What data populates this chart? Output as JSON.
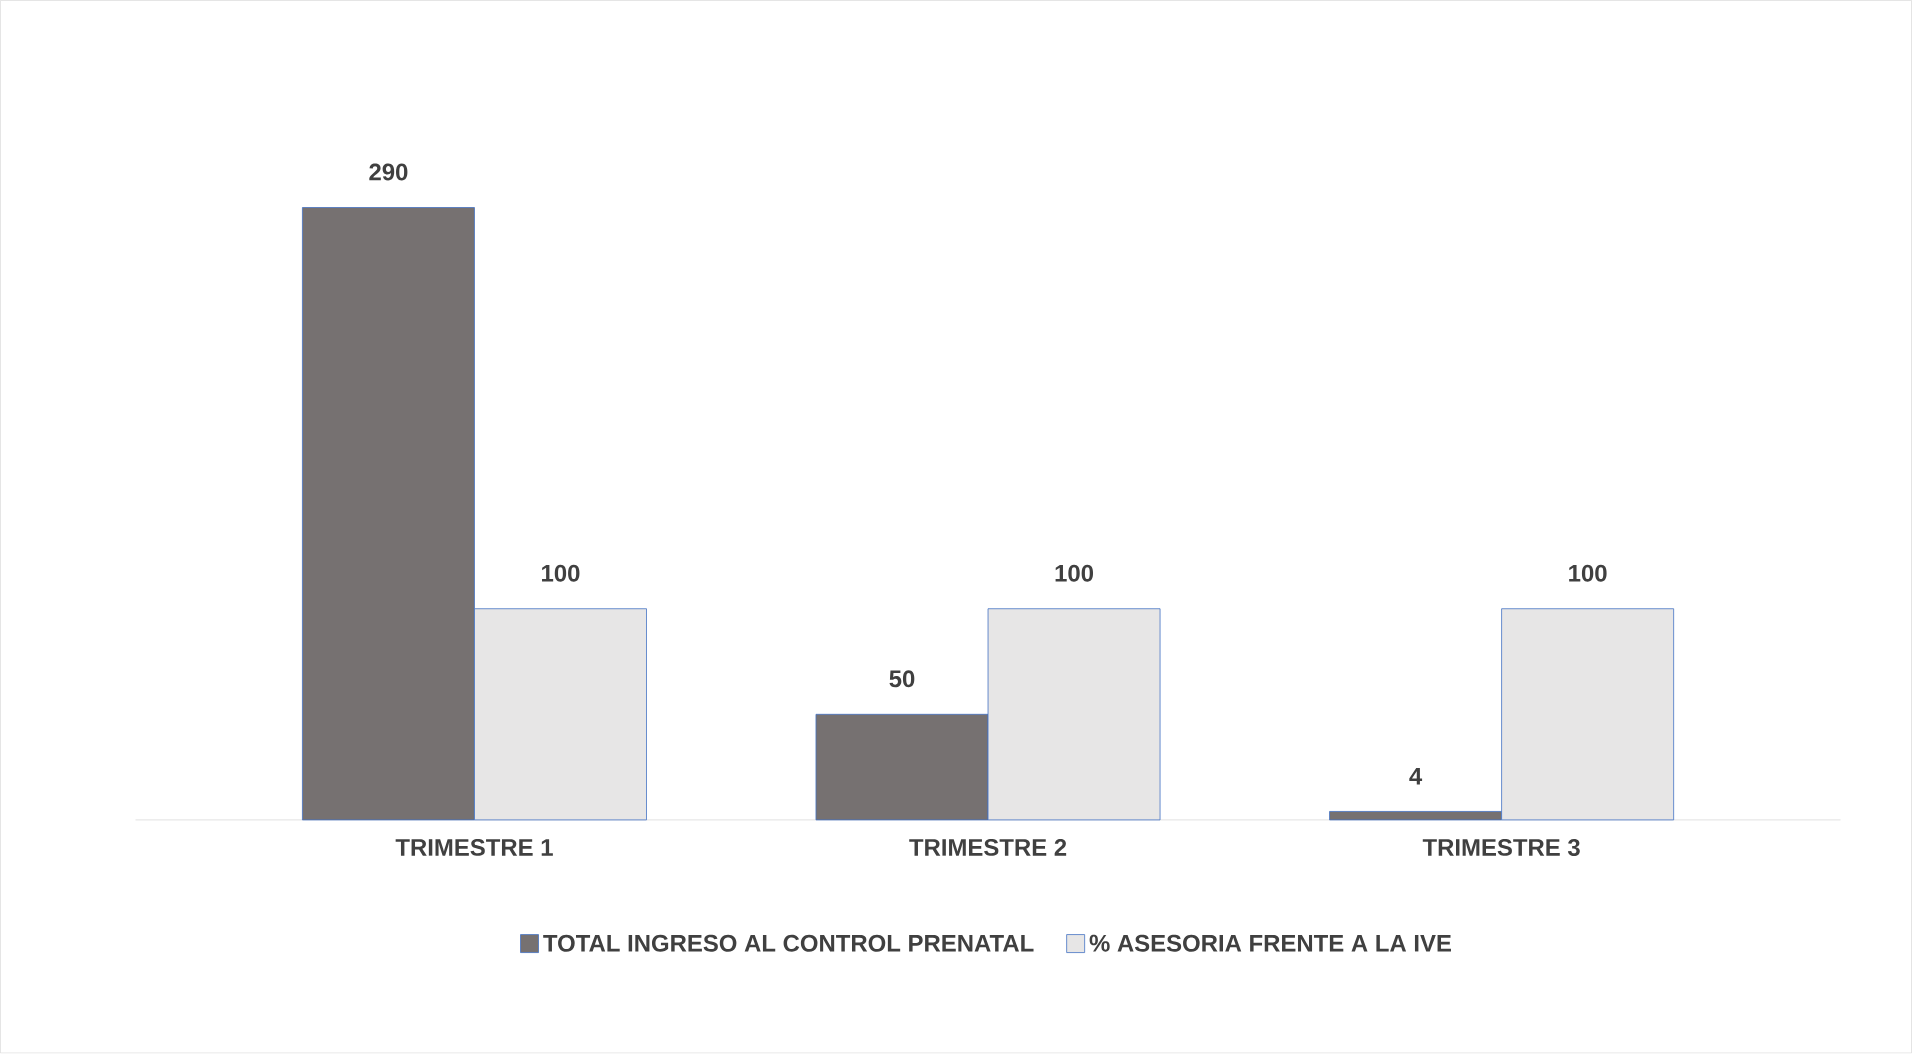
{
  "chart_data": {
    "type": "bar",
    "categories": [
      "TRIMESTRE 1",
      "TRIMESTRE 2",
      "TRIMESTRE 3"
    ],
    "series": [
      {
        "name": "TOTAL INGRESO AL CONTROL PRENATAL",
        "color": "#767171",
        "values": [
          290,
          50,
          4
        ]
      },
      {
        "name": "% ASESORIA FRENTE A LA IVE",
        "color": "#e7e6e6",
        "values": [
          100,
          100,
          100
        ]
      }
    ],
    "data_labels": true,
    "legend": "bottom"
  }
}
